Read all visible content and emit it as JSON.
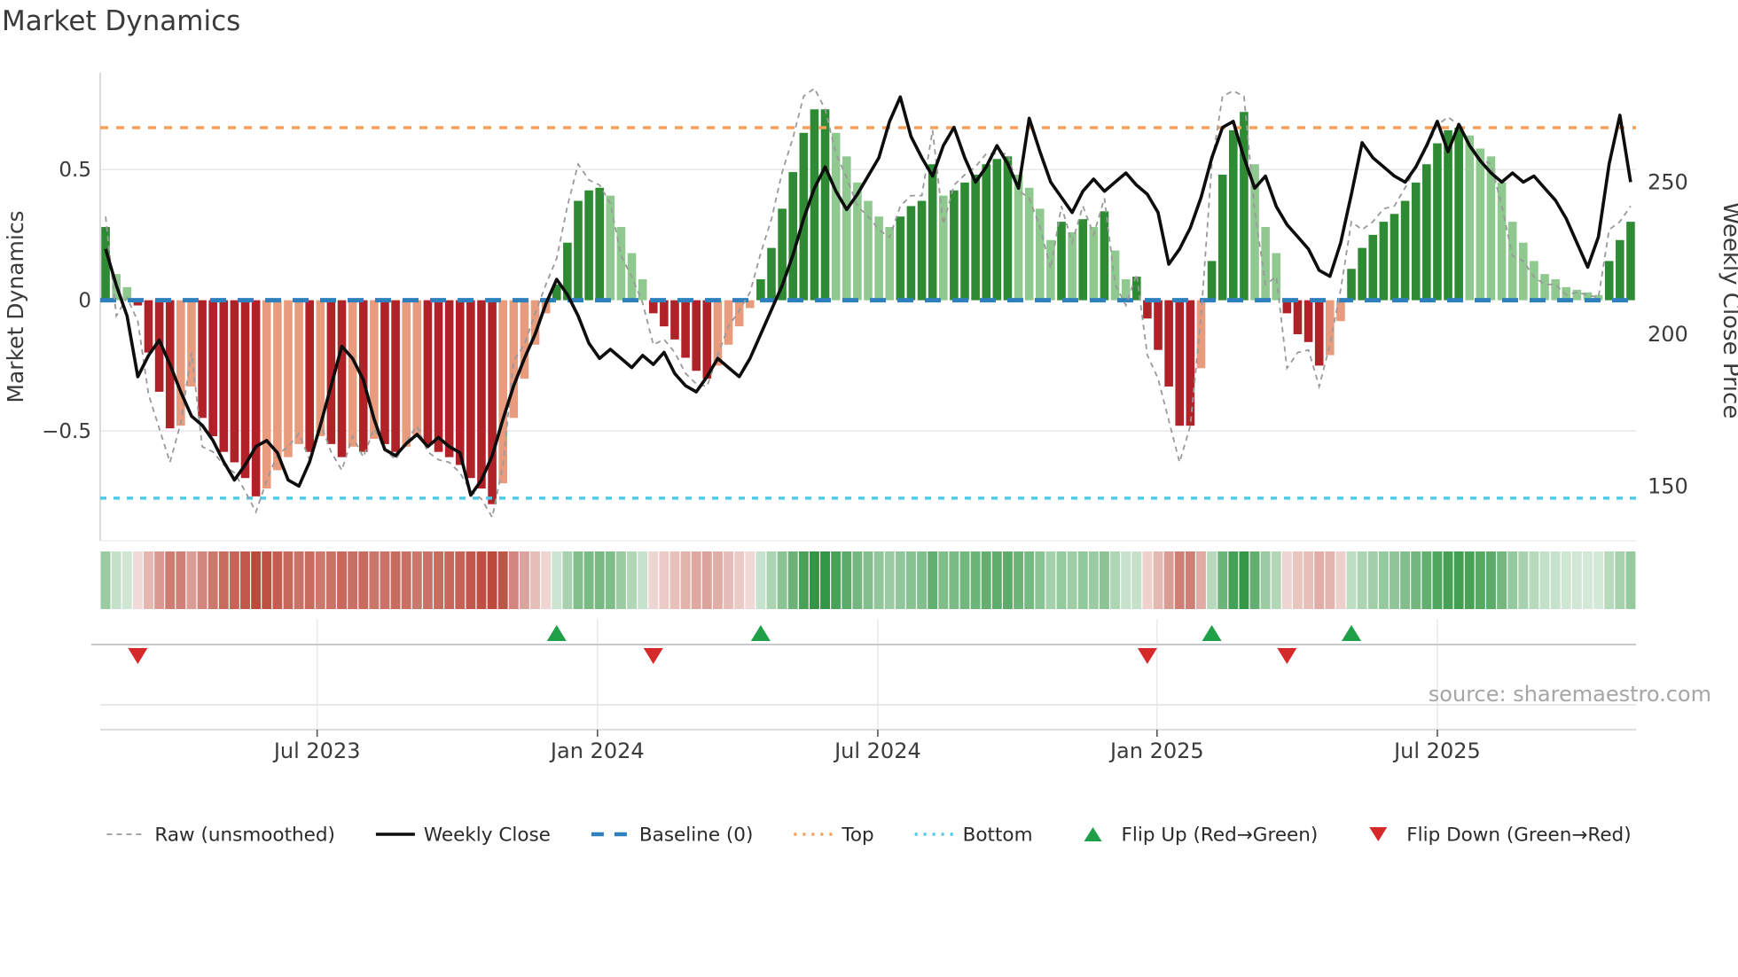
{
  "title": "Market Dynamics",
  "source": "source: sharemaestro.com",
  "left_axis": {
    "label": "Market Dynamics",
    "range": [
      -0.92,
      0.87
    ],
    "ticks": [
      {
        "value": 0.5,
        "label": "0.5"
      },
      {
        "value": 0.0,
        "label": "0"
      },
      {
        "value": -0.5,
        "label": "−0.5"
      }
    ]
  },
  "right_axis": {
    "label": "Weekly Close Price",
    "range": [
      132,
      286
    ],
    "ticks": [
      {
        "value": 250,
        "label": "250"
      },
      {
        "value": 200,
        "label": "200"
      },
      {
        "value": 150,
        "label": "150"
      }
    ]
  },
  "x_axis": {
    "ticks": [
      {
        "week": 20.2,
        "label": "Jul 2023"
      },
      {
        "week": 46.3,
        "label": "Jan 2024"
      },
      {
        "week": 72.4,
        "label": "Jul 2024"
      },
      {
        "week": 98.4,
        "label": "Jan 2025"
      },
      {
        "week": 124.5,
        "label": "Jul 2025"
      }
    ]
  },
  "colors": {
    "bar_green_dark": "#2e8b33",
    "bar_green_light": "#8fc98f",
    "bar_red_dark": "#b02228",
    "bar_red_light": "#e99b7d",
    "price_line": "#0d0d0d",
    "raw_line": "#9a9a9a",
    "baseline": "#2e7fbe",
    "top_line": "#f5a05a",
    "bottom_line": "#4ecbe8",
    "flip_up": "#1fa048",
    "flip_down": "#d62a2a",
    "grid": "#e9e9ee",
    "spine": "#cfcfd4",
    "tick_text": "#3b3b3b",
    "source_text": "#a6a6a6",
    "strip_green_base": "#2f9440",
    "strip_red_base": "#bb4a3c"
  },
  "chart_data": {
    "type": "bar",
    "description": "Weekly oscillator bars with raw (unsmoothed) dashed overlay on left axis, weekly close price line on right axis, heat strip and regime-flip markers below",
    "n_weeks": 143,
    "reference_lines": {
      "baseline": 0.0,
      "top": 0.66,
      "bottom": -0.757
    },
    "flip_up_weeks": [
      42,
      61,
      103,
      116
    ],
    "flip_down_weeks": [
      3,
      51,
      97,
      110
    ],
    "series": [
      {
        "name": "Oscillator (bars + heat strip)",
        "axis": "left",
        "values": [
          0.28,
          0.1,
          0.05,
          -0.02,
          -0.2,
          -0.35,
          -0.49,
          -0.48,
          -0.33,
          -0.45,
          -0.52,
          -0.58,
          -0.62,
          -0.68,
          -0.75,
          -0.72,
          -0.65,
          -0.6,
          -0.55,
          -0.58,
          -0.52,
          -0.55,
          -0.6,
          -0.56,
          -0.58,
          -0.53,
          -0.55,
          -0.58,
          -0.56,
          -0.52,
          -0.55,
          -0.58,
          -0.6,
          -0.63,
          -0.68,
          -0.72,
          -0.78,
          -0.7,
          -0.45,
          -0.3,
          -0.17,
          -0.05,
          0.06,
          0.22,
          0.38,
          0.42,
          0.43,
          0.4,
          0.28,
          0.18,
          0.08,
          -0.05,
          -0.1,
          -0.15,
          -0.22,
          -0.27,
          -0.3,
          -0.25,
          -0.17,
          -0.1,
          -0.03,
          0.08,
          0.2,
          0.35,
          0.49,
          0.64,
          0.73,
          0.73,
          0.64,
          0.55,
          0.45,
          0.38,
          0.32,
          0.28,
          0.32,
          0.36,
          0.38,
          0.52,
          0.4,
          0.42,
          0.45,
          0.48,
          0.52,
          0.54,
          0.55,
          0.48,
          0.43,
          0.35,
          0.23,
          0.3,
          0.26,
          0.31,
          0.28,
          0.34,
          0.19,
          0.08,
          0.09,
          -0.07,
          -0.19,
          -0.33,
          -0.48,
          -0.48,
          -0.26,
          0.15,
          0.48,
          0.65,
          0.72,
          0.52,
          0.28,
          0.18,
          -0.05,
          -0.13,
          -0.16,
          -0.25,
          -0.21,
          -0.08,
          0.12,
          0.2,
          0.25,
          0.3,
          0.33,
          0.38,
          0.45,
          0.52,
          0.6,
          0.65,
          0.66,
          0.63,
          0.58,
          0.55,
          0.45,
          0.3,
          0.22,
          0.15,
          0.1,
          0.08,
          0.05,
          0.04,
          0.03,
          0.02,
          0.15,
          0.23,
          0.3
        ]
      },
      {
        "name": "Raw (unsmoothed)",
        "axis": "left",
        "values": [
          0.32,
          -0.06,
          0.01,
          -0.08,
          -0.36,
          -0.49,
          -0.62,
          -0.47,
          -0.2,
          -0.56,
          -0.58,
          -0.63,
          -0.66,
          -0.73,
          -0.81,
          -0.69,
          -0.59,
          -0.56,
          -0.51,
          -0.61,
          -0.47,
          -0.58,
          -0.65,
          -0.52,
          -0.6,
          -0.49,
          -0.57,
          -0.61,
          -0.54,
          -0.48,
          -0.58,
          -0.61,
          -0.62,
          -0.66,
          -0.73,
          -0.76,
          -0.83,
          -0.63,
          -0.23,
          -0.17,
          -0.05,
          0.06,
          0.16,
          0.36,
          0.52,
          0.46,
          0.44,
          0.37,
          0.17,
          0.09,
          -0.01,
          -0.17,
          -0.15,
          -0.2,
          -0.28,
          -0.32,
          -0.33,
          -0.21,
          -0.1,
          -0.04,
          0.03,
          0.18,
          0.31,
          0.49,
          0.62,
          0.78,
          0.81,
          0.73,
          0.56,
          0.47,
          0.36,
          0.32,
          0.27,
          0.24,
          0.36,
          0.4,
          0.4,
          0.65,
          0.29,
          0.44,
          0.48,
          0.51,
          0.56,
          0.56,
          0.56,
          0.42,
          0.39,
          0.28,
          0.12,
          0.36,
          0.22,
          0.36,
          0.25,
          0.39,
          0.06,
          -0.02,
          0.1,
          -0.21,
          -0.3,
          -0.46,
          -0.62,
          -0.48,
          -0.06,
          0.52,
          0.78,
          0.8,
          0.78,
          0.34,
          0.06,
          0.09,
          -0.26,
          -0.2,
          -0.19,
          -0.33,
          -0.17,
          0.04,
          0.3,
          0.27,
          0.3,
          0.35,
          0.36,
          0.43,
          0.51,
          0.58,
          0.67,
          0.7,
          0.67,
          0.6,
          0.54,
          0.52,
          0.36,
          0.17,
          0.15,
          0.09,
          0.06,
          0.06,
          0.02,
          0.03,
          0.02,
          0.01,
          0.27,
          0.3,
          0.36
        ]
      },
      {
        "name": "Weekly Close",
        "axis": "right",
        "values": [
          228,
          216,
          206,
          186,
          193,
          198,
          190,
          181,
          173,
          170,
          165,
          158,
          152,
          157,
          163,
          165,
          161,
          152,
          150,
          158,
          170,
          183,
          196,
          192,
          185,
          172,
          162,
          160,
          164,
          167,
          163,
          166,
          163,
          161,
          147,
          152,
          160,
          172,
          183,
          192,
          200,
          210,
          218,
          213,
          206,
          197,
          192,
          195,
          192,
          189,
          193,
          190,
          194,
          187,
          183,
          181,
          186,
          192,
          189,
          186,
          192,
          200,
          208,
          216,
          226,
          238,
          248,
          255,
          247,
          241,
          246,
          252,
          258,
          270,
          278,
          265,
          258,
          252,
          262,
          268,
          258,
          250,
          255,
          262,
          256,
          248,
          271,
          260,
          250,
          245,
          240,
          247,
          251,
          247,
          250,
          253,
          249,
          246,
          240,
          223,
          228,
          235,
          245,
          258,
          268,
          270,
          258,
          248,
          252,
          242,
          236,
          232,
          228,
          221,
          219,
          230,
          246,
          263,
          258,
          255,
          252,
          250,
          255,
          262,
          270,
          260,
          269,
          262,
          257,
          253,
          250,
          253,
          250,
          252,
          248,
          244,
          238,
          230,
          222,
          232,
          256,
          272,
          250
        ]
      }
    ]
  },
  "legend": [
    {
      "label": "Raw (unsmoothed)",
      "marker": "dashed-line",
      "color": "#9a9a9a"
    },
    {
      "label": "Weekly Close",
      "marker": "solid-line",
      "color": "#0d0d0d"
    },
    {
      "label": "Baseline (0)",
      "marker": "dash2-line",
      "color": "#2e7fbe"
    },
    {
      "label": "Top",
      "marker": "dotted-line",
      "color": "#f5a05a"
    },
    {
      "label": "Bottom",
      "marker": "dotted-line",
      "color": "#4ecbe8"
    },
    {
      "label": "Flip Up (Red→Green)",
      "marker": "triangle-up",
      "color": "#1fa048"
    },
    {
      "label": "Flip Down (Green→Red)",
      "marker": "triangle-down",
      "color": "#d62a2a"
    }
  ]
}
